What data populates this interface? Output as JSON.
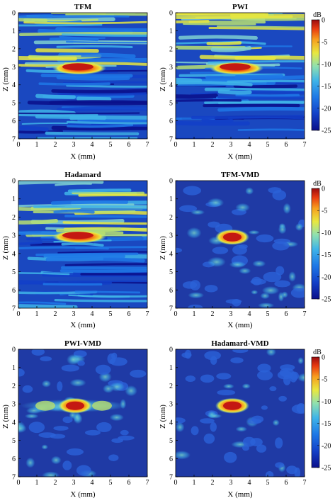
{
  "figure": {
    "panels": [
      {
        "title": "TFM",
        "xlabel": "X (mm)",
        "ylabel": "Z (mm)",
        "colorbar": false
      },
      {
        "title": "PWI",
        "xlabel": "X (mm)",
        "ylabel": "Z (mm)",
        "colorbar": true
      },
      {
        "title": "Hadamard",
        "xlabel": "X (mm)",
        "ylabel": "Z (mm)",
        "colorbar": false
      },
      {
        "title": "TFM-VMD",
        "xlabel": "X (mm)",
        "ylabel": "Z (mm)",
        "colorbar": true
      },
      {
        "title": "PWI-VMD",
        "xlabel": "X (mm)",
        "ylabel": "Z (mm)",
        "colorbar": false
      },
      {
        "title": "Hadamard-VMD",
        "xlabel": "X (mm)",
        "ylabel": "Z (mm)",
        "colorbar": true
      }
    ],
    "x_ticks": [
      "0",
      "1",
      "2",
      "3",
      "4",
      "5",
      "6",
      "7"
    ],
    "z_ticks": [
      "0",
      "1",
      "2",
      "3",
      "4",
      "5",
      "6",
      "7"
    ],
    "colorbar": {
      "unit_label": "dB",
      "ticks": [
        "0",
        "-5",
        "-10",
        "-15",
        "-20",
        "-25"
      ],
      "range": [
        -25,
        0
      ]
    },
    "colors": {
      "background": "#1e3aa8",
      "cmap": [
        "#0a0f8a",
        "#1340c8",
        "#1e78e6",
        "#3fb4e8",
        "#8fe0b0",
        "#e8e840",
        "#f7a01e",
        "#e83a10",
        "#9a0c10"
      ]
    }
  }
}
